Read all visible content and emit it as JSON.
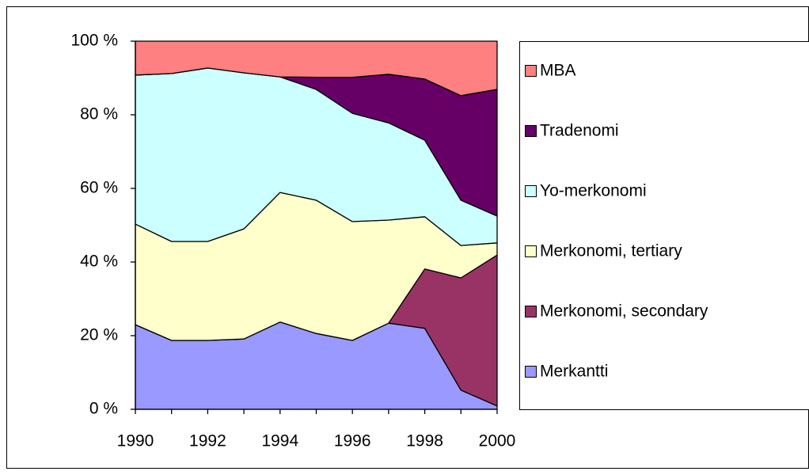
{
  "chart_data": {
    "type": "stacked-area",
    "x": [
      1990,
      1991,
      1992,
      1993,
      1994,
      1995,
      1996,
      1997,
      1998,
      1999,
      2000
    ],
    "xlim": [
      1990,
      2000
    ],
    "xticks": [
      1990,
      1992,
      1994,
      1996,
      1998,
      2000
    ],
    "ylim": [
      0,
      100
    ],
    "yticks": [
      {
        "value": 0,
        "label": "0 %"
      },
      {
        "value": 20,
        "label": "20 %"
      },
      {
        "value": 40,
        "label": "40 %"
      },
      {
        "value": 60,
        "label": "60 %"
      },
      {
        "value": 80,
        "label": "80 %"
      },
      {
        "value": 100,
        "label": "100 %"
      }
    ],
    "legend": "right",
    "series": [
      {
        "name": "Merkantti",
        "color": "#9999ff",
        "values": [
          23,
          18.7,
          18.7,
          19.1,
          23.7,
          20.6,
          18.7,
          23.4,
          22,
          5.2,
          0.9
        ]
      },
      {
        "name": "Merkonomi, secondary",
        "color": "#993366",
        "values": [
          0,
          0,
          0,
          0,
          0,
          0,
          0,
          0,
          16.1,
          30.5,
          41
        ]
      },
      {
        "name": "Merkonomi, tertiary",
        "color": "#ffffcc",
        "values": [
          27.3,
          26.9,
          26.9,
          29.9,
          35.2,
          36.2,
          32.3,
          28,
          14.2,
          8.8,
          3.3
        ]
      },
      {
        "name": "Yo-merkonomi",
        "color": "#ccffff",
        "values": [
          40.5,
          45.6,
          47.1,
          42.4,
          31.4,
          30.1,
          29.4,
          26.4,
          20.8,
          12.3,
          7.3
        ]
      },
      {
        "name": "Tradenomi",
        "color": "#660066",
        "values": [
          0,
          0,
          0,
          0,
          0,
          3.3,
          9.8,
          13.2,
          16.6,
          28.4,
          34.4
        ]
      },
      {
        "name": "MBA",
        "color": "#ff8080",
        "values": [
          9.2,
          8.8,
          7.3,
          8.6,
          9.7,
          9.8,
          9.8,
          9,
          10.3,
          14.8,
          13.1
        ]
      }
    ]
  }
}
